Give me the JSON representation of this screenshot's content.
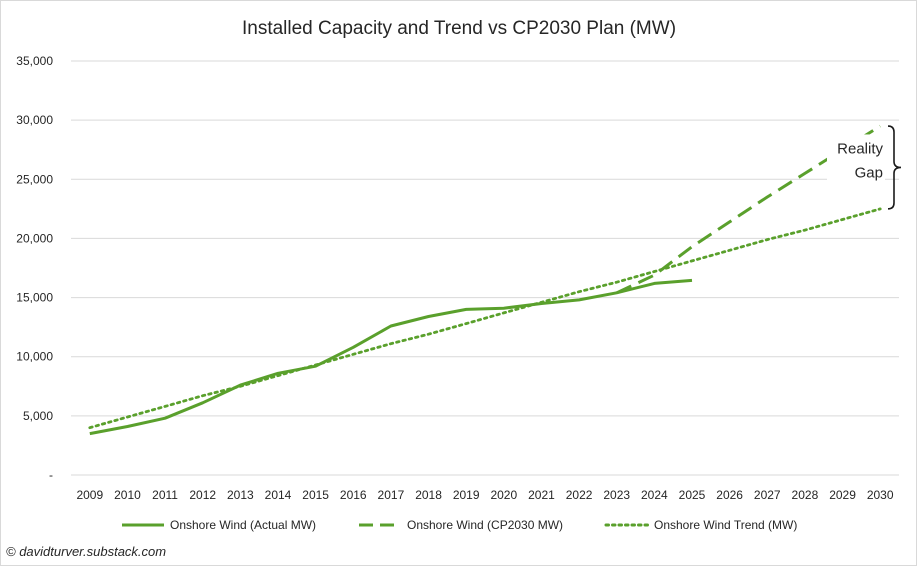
{
  "chart_data": {
    "type": "line",
    "title": "Installed Capacity and Trend vs CP2030 Plan (MW)",
    "xlabel": "",
    "ylabel": "",
    "categories": [
      "2009",
      "2010",
      "2011",
      "2012",
      "2013",
      "2014",
      "2015",
      "2016",
      "2017",
      "2018",
      "2019",
      "2020",
      "2021",
      "2022",
      "2023",
      "2024",
      "2025",
      "2026",
      "2027",
      "2028",
      "2029",
      "2030"
    ],
    "ylim": [
      0,
      35000
    ],
    "yticks": [
      0,
      5000,
      10000,
      15000,
      20000,
      25000,
      30000,
      35000
    ],
    "ytick_labels": [
      "-",
      "5,000",
      "10,000",
      "15,000",
      "20,000",
      "25,000",
      "30,000",
      "35,000"
    ],
    "grid": true,
    "legend_position": "bottom",
    "series": [
      {
        "name": "Onshore Wind (Actual MW)",
        "style": "solid",
        "color": "#5aa02c",
        "values": [
          3500,
          4100,
          4800,
          6100,
          7600,
          8600,
          9200,
          10800,
          12600,
          13400,
          14000,
          14100,
          14500,
          14800,
          15400,
          16200,
          16450,
          null,
          null,
          null,
          null,
          null
        ]
      },
      {
        "name": "Onshore Wind (CP2030 MW)",
        "style": "dashed",
        "color": "#5aa02c",
        "values": [
          null,
          null,
          null,
          null,
          null,
          null,
          null,
          null,
          null,
          null,
          null,
          null,
          null,
          null,
          15400,
          16900,
          19300,
          21400,
          23500,
          25500,
          27500,
          29500
        ]
      },
      {
        "name": "Onshore Wind Trend (MW)",
        "style": "dotted",
        "color": "#5aa02c",
        "values": [
          4000,
          4900,
          5800,
          6700,
          7500,
          8400,
          9300,
          10200,
          11100,
          11900,
          12800,
          13700,
          14600,
          15500,
          16300,
          17200,
          18100,
          19000,
          19900,
          20700,
          21600,
          22500
        ]
      }
    ],
    "annotation": {
      "lines": [
        "Reality",
        "Gap"
      ],
      "from": 29500,
      "to": 22500
    }
  },
  "credit": "© davidturver.substack.com"
}
